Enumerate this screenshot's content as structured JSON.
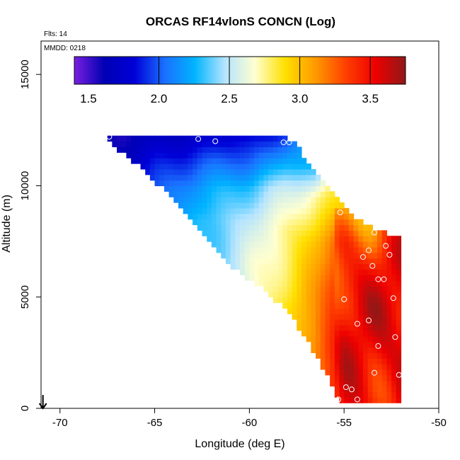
{
  "chart_data": {
    "type": "heatmap",
    "title": "ORCAS RF14vlonS CONCN (Log)",
    "xlabel": "Longitude (deg E)",
    "ylabel": "Altitude (m)",
    "xlim": [
      -71,
      -50
    ],
    "ylim": [
      0,
      16500
    ],
    "x_ticks": [
      -70,
      -65,
      -60,
      -55,
      -50
    ],
    "y_ticks": [
      0,
      5000,
      10000,
      15000
    ],
    "annotations": [
      {
        "name": "flights",
        "text": "Flts: 14"
      },
      {
        "name": "date",
        "text": "MMDD: 0218"
      }
    ],
    "colorbar": {
      "range": [
        1.4,
        3.75
      ],
      "ticks": [
        1.5,
        2.0,
        2.5,
        3.0,
        3.5
      ],
      "stops": [
        "#7a1fe0",
        "#0000b4",
        "#0000d8",
        "#1a70ff",
        "#00b4ff",
        "#b4e4ff",
        "#ffffd0",
        "#ffe000",
        "#ff9a00",
        "#ff4000",
        "#ee0000",
        "#901818"
      ]
    },
    "field": {
      "top_edge": [
        [
          -67.5,
          12200
        ],
        [
          -58,
          12200
        ],
        [
          -57.4,
          11700
        ],
        [
          -56.4,
          10400
        ],
        [
          -55.5,
          9500
        ],
        [
          -54.8,
          8800
        ],
        [
          -53.5,
          8100
        ],
        [
          -52.2,
          7700
        ],
        [
          -51.5,
          7600
        ]
      ],
      "bottom_edge": [
        [
          -67.5,
          12000
        ],
        [
          -66.5,
          11400
        ],
        [
          -64.5,
          9800
        ],
        [
          -62.5,
          8000
        ],
        [
          -61,
          6400
        ],
        [
          -59.5,
          5500
        ],
        [
          -58,
          4400
        ],
        [
          -56.5,
          2400
        ],
        [
          -55.3,
          500
        ],
        [
          -55,
          200
        ],
        [
          -52,
          200
        ]
      ],
      "right_edge": [
        [
          -51.5,
          7600
        ],
        [
          -51.5,
          7200
        ],
        [
          -51.3,
          6200
        ],
        [
          -51.4,
          4000
        ],
        [
          -51.3,
          3000
        ],
        [
          -51.5,
          1800
        ],
        [
          -52,
          200
        ]
      ],
      "profiles": [
        {
          "x": -67.5,
          "z": [
            [
              12200,
              1.6
            ]
          ]
        },
        {
          "x": -65,
          "z": [
            [
              12200,
              1.65
            ],
            [
              11000,
              1.85
            ],
            [
              9800,
              2.0
            ]
          ]
        },
        {
          "x": -62.5,
          "z": [
            [
              12200,
              1.75
            ],
            [
              11000,
              2.0
            ],
            [
              9800,
              2.2
            ],
            [
              8500,
              2.3
            ]
          ]
        },
        {
          "x": -60,
          "z": [
            [
              12200,
              1.8
            ],
            [
              11000,
              2.05
            ],
            [
              9800,
              2.35
            ],
            [
              8500,
              2.5
            ],
            [
              7500,
              2.55
            ],
            [
              6500,
              2.6
            ]
          ]
        },
        {
          "x": -58,
          "z": [
            [
              12200,
              1.95
            ],
            [
              10000,
              2.5
            ],
            [
              8000,
              2.75
            ],
            [
              5500,
              2.85
            ],
            [
              4500,
              2.9
            ]
          ]
        },
        {
          "x": -56.5,
          "z": [
            [
              11000,
              2.2
            ],
            [
              9500,
              2.75
            ],
            [
              7500,
              3.0
            ],
            [
              4500,
              3.1
            ],
            [
              2500,
              3.2
            ]
          ]
        },
        {
          "x": -55,
          "z": [
            [
              9200,
              2.9
            ],
            [
              7500,
              3.3
            ],
            [
              5500,
              3.5
            ],
            [
              3000,
              3.55
            ],
            [
              800,
              3.5
            ]
          ]
        },
        {
          "x": -53.5,
          "z": [
            [
              8200,
              3.2
            ],
            [
              6500,
              3.45
            ],
            [
              4500,
              3.55
            ],
            [
              2500,
              3.5
            ],
            [
              600,
              3.45
            ]
          ]
        },
        {
          "x": -51.5,
          "z": [
            [
              7600,
              3.5
            ],
            [
              5000,
              3.6
            ],
            [
              2500,
              3.6
            ],
            [
              400,
              3.5
            ]
          ]
        }
      ]
    },
    "samples": [
      [
        -67.4,
        12200
      ],
      [
        -62.7,
        12100
      ],
      [
        -61.8,
        12000
      ],
      [
        -58.2,
        11950
      ],
      [
        -57.9,
        11950
      ],
      [
        -55.2,
        8800
      ],
      [
        -53.4,
        7900
      ],
      [
        -51.5,
        7500
      ],
      [
        -52.8,
        7300
      ],
      [
        -53.7,
        7100
      ],
      [
        -52.6,
        6900
      ],
      [
        -54.0,
        6800
      ],
      [
        -53.5,
        6400
      ],
      [
        -51.6,
        6100
      ],
      [
        -53.2,
        5800
      ],
      [
        -52.9,
        5800
      ],
      [
        -55.0,
        4900
      ],
      [
        -52.4,
        4950
      ],
      [
        -53.7,
        3950
      ],
      [
        -54.3,
        3800
      ],
      [
        -52.3,
        3200
      ],
      [
        -51.8,
        3000
      ],
      [
        -53.2,
        2800
      ],
      [
        -52.1,
        1500
      ],
      [
        -53.4,
        1600
      ],
      [
        -54.9,
        950
      ],
      [
        -54.6,
        850
      ],
      [
        -55.3,
        400
      ],
      [
        -54.3,
        400
      ],
      [
        -51.8,
        350
      ]
    ],
    "start_marker": {
      "x": -70.9,
      "z": 600
    }
  }
}
